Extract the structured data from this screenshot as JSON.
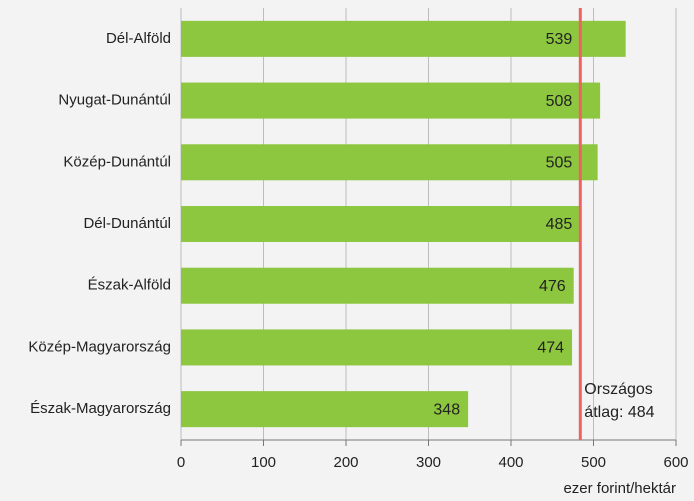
{
  "chart_data": {
    "type": "bar",
    "orientation": "horizontal",
    "categories": [
      "Dél-Alföld",
      "Nyugat-Dunántúl",
      "Közép-Dunántúl",
      "Dél-Dunántúl",
      "Észak-Alföld",
      "Közép-Magyarország",
      "Észak-Magyarország"
    ],
    "values": [
      539,
      508,
      505,
      485,
      476,
      474,
      348
    ],
    "color": "#8dc63f",
    "xlim": [
      0,
      600
    ],
    "xticks": [
      0,
      100,
      200,
      300,
      400,
      500,
      600
    ],
    "x_label": "ezer forint/hektár",
    "grid": true,
    "reference_line": {
      "value": 484,
      "color": "#f06262",
      "label": [
        "Országos",
        "átlag: 484"
      ]
    }
  }
}
